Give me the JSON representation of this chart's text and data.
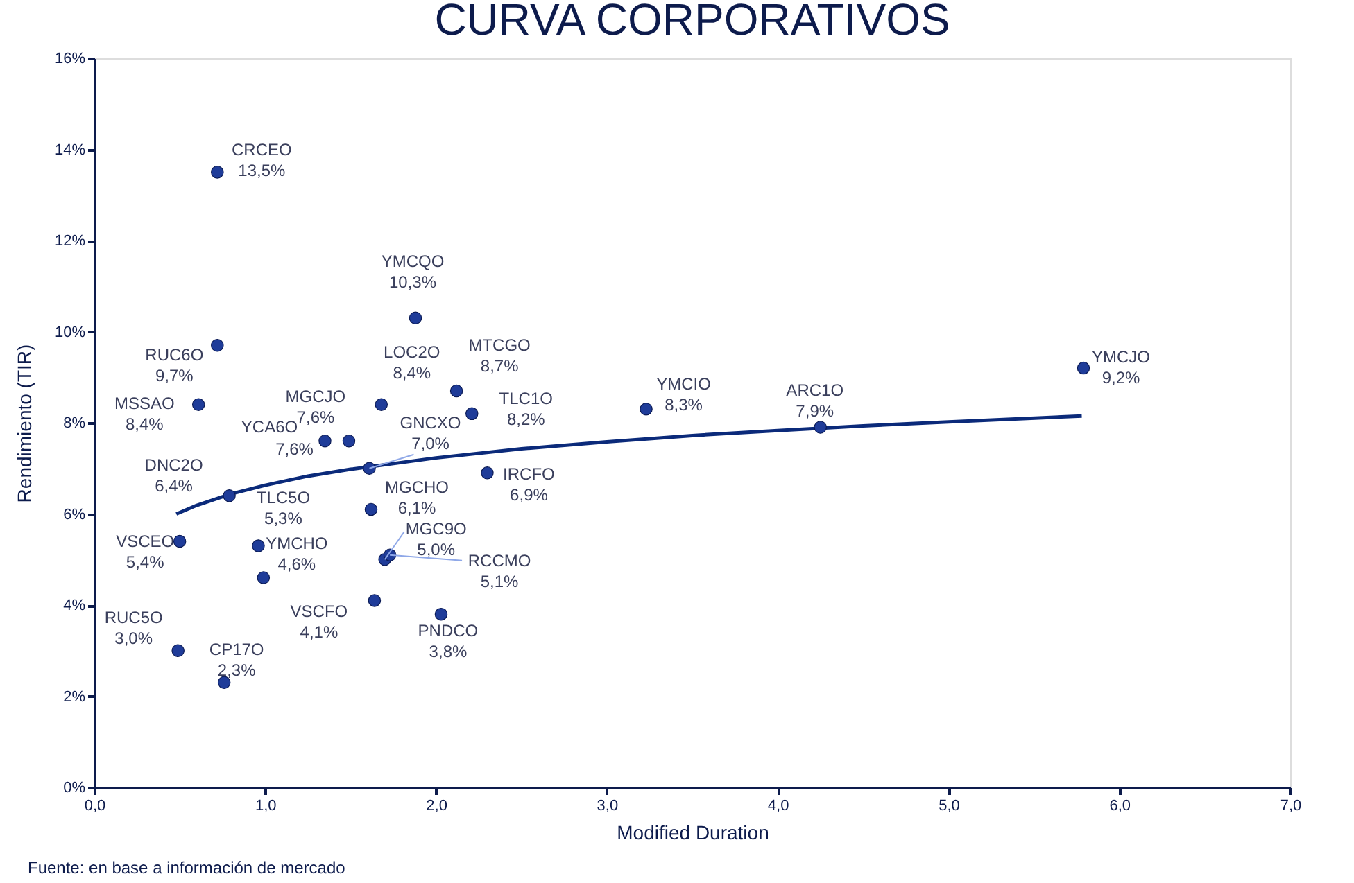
{
  "chart_data": {
    "type": "scatter",
    "title": "CURVA CORPORATIVOS",
    "xlabel": "Modified Duration",
    "ylabel": "Rendimiento (TIR)",
    "xlim": [
      0,
      7
    ],
    "ylim": [
      0,
      16
    ],
    "xticks": [
      {
        "value": 0,
        "label": "0,0"
      },
      {
        "value": 1,
        "label": "1,0"
      },
      {
        "value": 2,
        "label": "2,0"
      },
      {
        "value": 3,
        "label": "3,0"
      },
      {
        "value": 4,
        "label": "4,0"
      },
      {
        "value": 5,
        "label": "5,0"
      },
      {
        "value": 6,
        "label": "6,0"
      },
      {
        "value": 7,
        "label": "7,0"
      }
    ],
    "yticks": [
      {
        "value": 0,
        "label": "0%"
      },
      {
        "value": 2,
        "label": "2%"
      },
      {
        "value": 4,
        "label": "4%"
      },
      {
        "value": 6,
        "label": "6%"
      },
      {
        "value": 8,
        "label": "8%"
      },
      {
        "value": 10,
        "label": "10%"
      },
      {
        "value": 12,
        "label": "12%"
      },
      {
        "value": 14,
        "label": "14%"
      },
      {
        "value": 16,
        "label": "16%"
      }
    ],
    "grid": false,
    "marker": "circle",
    "series": [
      {
        "type": "scatter",
        "color": "#1f3c99",
        "x": [
          0.72,
          1.88,
          0.72,
          0.61,
          1.68,
          2.12,
          2.21,
          1.35,
          1.49,
          1.61,
          2.3,
          0.79,
          1.62,
          0.5,
          0.96,
          0.99,
          1.7,
          1.73,
          1.64,
          2.03,
          0.49,
          0.76,
          3.23,
          4.25,
          5.79
        ],
        "values": [
          13.5,
          10.3,
          9.7,
          8.4,
          8.4,
          8.7,
          8.2,
          7.6,
          7.6,
          7.0,
          6.9,
          6.4,
          6.1,
          5.4,
          5.3,
          4.6,
          5.0,
          5.1,
          4.1,
          3.8,
          3.0,
          2.3,
          8.3,
          7.9,
          9.2
        ],
        "value_labels": [
          "13,5%",
          "10,3%",
          "9,7%",
          "8,4%",
          "8,4%",
          "8,7%",
          "8,2%",
          "7,6%",
          "7,6%",
          "7,0%",
          "6,9%",
          "6,4%",
          "6,1%",
          "5,4%",
          "5,3%",
          "4,6%",
          "5,0%",
          "5,1%",
          "4,1%",
          "3,8%",
          "3,0%",
          "2,3%",
          "8,3%",
          "7,9%",
          "9,2%"
        ]
      },
      {
        "type": "line",
        "color": "#0b2a7a",
        "marker": "none",
        "x": [
          0.48,
          0.6,
          0.8,
          1.0,
          1.25,
          1.5,
          2.0,
          2.5,
          3.0,
          3.5,
          4.0,
          4.5,
          5.0,
          5.78
        ],
        "values": [
          6.0,
          6.19,
          6.44,
          6.63,
          6.83,
          6.98,
          7.23,
          7.43,
          7.58,
          7.72,
          7.83,
          7.93,
          8.02,
          8.15
        ]
      }
    ],
    "annotations": [
      {
        "text": "CRCEO",
        "x": 0.72,
        "y": 13.5
      },
      {
        "text": "YMCQO",
        "x": 1.88,
        "y": 10.3
      },
      {
        "text": "RUC6O",
        "x": 0.72,
        "y": 9.7
      },
      {
        "text": "MSSAO",
        "x": 0.61,
        "y": 8.4
      },
      {
        "text": "LOC2O",
        "x": 1.68,
        "y": 8.4
      },
      {
        "text": "MTCGO",
        "x": 2.12,
        "y": 8.7
      },
      {
        "text": "TLC1O",
        "x": 2.21,
        "y": 8.2
      },
      {
        "text": "YCA6O",
        "x": 1.35,
        "y": 7.6
      },
      {
        "text": "MGCJO",
        "x": 1.49,
        "y": 7.6
      },
      {
        "text": "GNCXO",
        "x": 1.61,
        "y": 7.0
      },
      {
        "text": "IRCFO",
        "x": 2.3,
        "y": 6.9
      },
      {
        "text": "DNC2O",
        "x": 0.79,
        "y": 6.4
      },
      {
        "text": "MGCHO",
        "x": 1.62,
        "y": 6.1
      },
      {
        "text": "VSCEO",
        "x": 0.5,
        "y": 5.4
      },
      {
        "text": "TLC5O",
        "x": 0.96,
        "y": 5.3
      },
      {
        "text": "YMCHO",
        "x": 0.99,
        "y": 4.6
      },
      {
        "text": "MGC9O",
        "x": 1.7,
        "y": 5.0
      },
      {
        "text": "RCCMO",
        "x": 1.73,
        "y": 5.1
      },
      {
        "text": "VSCFO",
        "x": 1.64,
        "y": 4.1
      },
      {
        "text": "PNDCO",
        "x": 2.03,
        "y": 3.8
      },
      {
        "text": "RUC5O",
        "x": 0.49,
        "y": 3.0
      },
      {
        "text": "CP17O",
        "x": 0.76,
        "y": 2.3
      },
      {
        "text": "YMCIO",
        "x": 3.23,
        "y": 8.3
      },
      {
        "text": "ARC1O",
        "x": 4.25,
        "y": 7.9
      },
      {
        "text": "YMCJO",
        "x": 5.79,
        "y": 9.2
      },
      "Fuente: en base a información de mercado"
    ]
  }
}
